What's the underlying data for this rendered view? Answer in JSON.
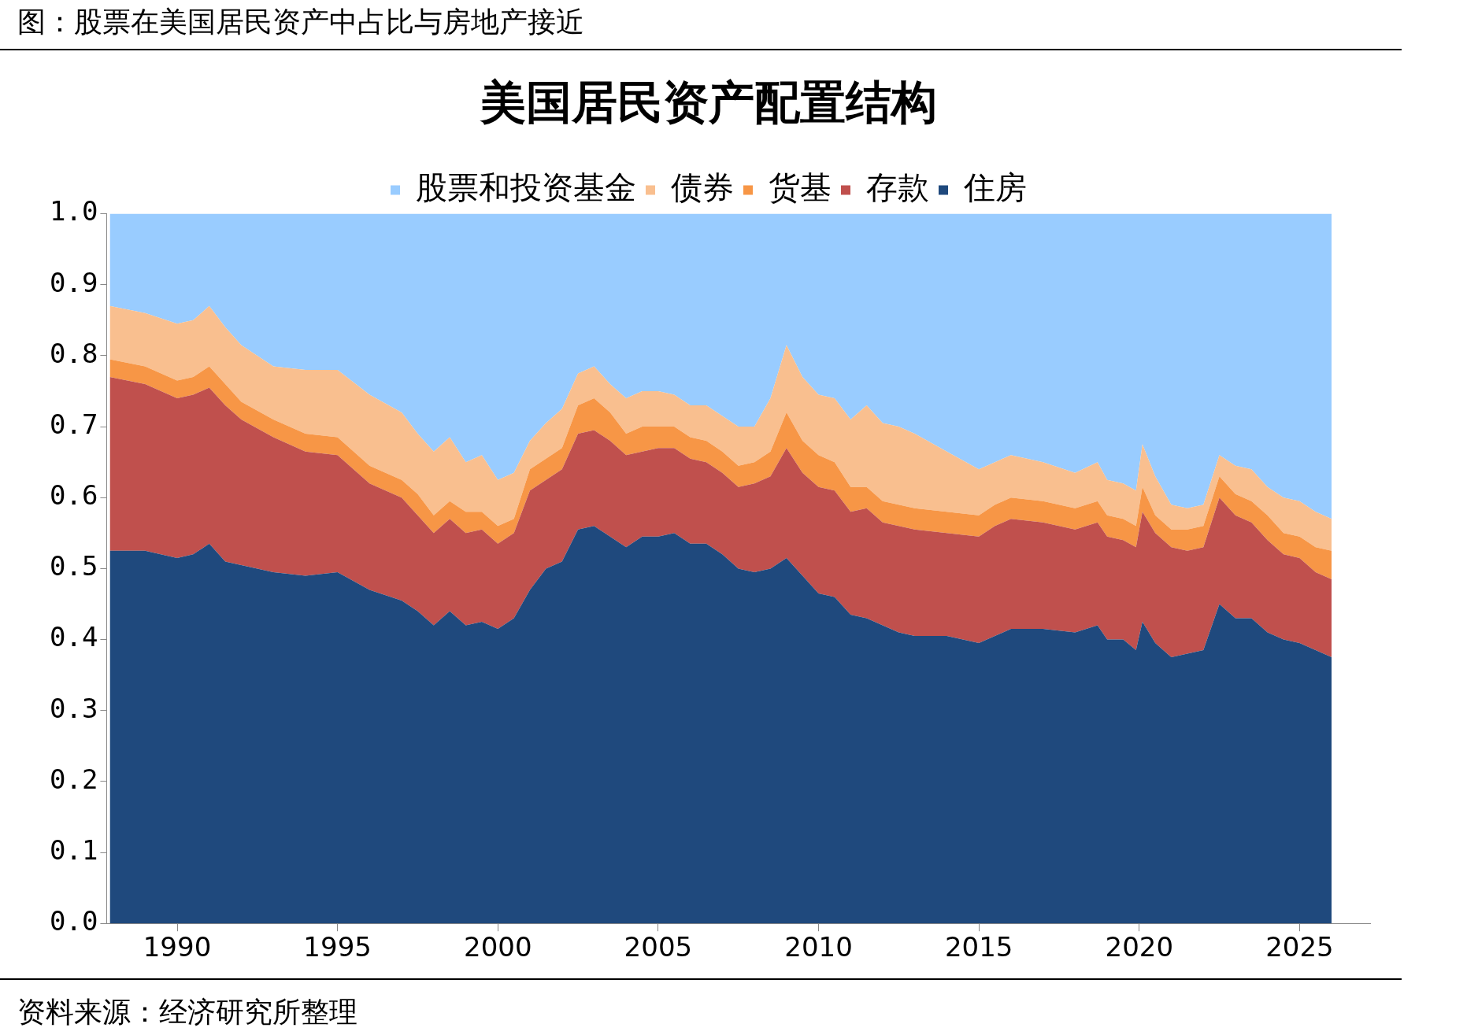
{
  "chart_data": {
    "type": "area",
    "title": "图：股票在美国居民资产中占比与房地产接近",
    "subtitle": "美国居民资产配置结构",
    "stacked": true,
    "legend": "top",
    "grid": false,
    "x": [
      1987.9,
      1989,
      1990,
      1990.5,
      1991,
      1991.5,
      1992,
      1993,
      1994,
      1995,
      1996,
      1997,
      1997.5,
      1998,
      1998.5,
      1999,
      1999.5,
      2000,
      2000.5,
      2001,
      2001.5,
      2002,
      2002.5,
      2003,
      2003.5,
      2004,
      2004.5,
      2005,
      2005.5,
      2006,
      2006.5,
      2007,
      2007.5,
      2008,
      2008.5,
      2009,
      2009.5,
      2010,
      2010.5,
      2011,
      2011.5,
      2012,
      2012.5,
      2013,
      2014,
      2015,
      2015.5,
      2016,
      2017,
      2018,
      2018.7,
      2019,
      2019.5,
      2019.9,
      2020.1,
      2020.5,
      2021,
      2021.5,
      2022,
      2022.5,
      2023,
      2023.5,
      2024,
      2024.5,
      2025,
      2025.5,
      2026
    ],
    "series": [
      {
        "name": "住房",
        "color": "#1f497d",
        "values": [
          0.525,
          0.525,
          0.515,
          0.52,
          0.535,
          0.51,
          0.505,
          0.495,
          0.49,
          0.495,
          0.47,
          0.455,
          0.44,
          0.42,
          0.44,
          0.42,
          0.425,
          0.415,
          0.43,
          0.47,
          0.5,
          0.51,
          0.555,
          0.56,
          0.545,
          0.53,
          0.545,
          0.545,
          0.55,
          0.535,
          0.535,
          0.52,
          0.5,
          0.495,
          0.5,
          0.515,
          0.49,
          0.465,
          0.46,
          0.435,
          0.43,
          0.42,
          0.41,
          0.405,
          0.405,
          0.395,
          0.405,
          0.415,
          0.415,
          0.41,
          0.42,
          0.4,
          0.4,
          0.385,
          0.425,
          0.395,
          0.375,
          0.38,
          0.385,
          0.45,
          0.43,
          0.43,
          0.41,
          0.4,
          0.395,
          0.385,
          0.375
        ]
      },
      {
        "name": "存款",
        "color": "#c0504d",
        "values": [
          0.245,
          0.235,
          0.225,
          0.225,
          0.22,
          0.22,
          0.205,
          0.19,
          0.175,
          0.165,
          0.15,
          0.145,
          0.135,
          0.13,
          0.13,
          0.13,
          0.13,
          0.12,
          0.12,
          0.14,
          0.125,
          0.13,
          0.135,
          0.135,
          0.135,
          0.13,
          0.12,
          0.125,
          0.12,
          0.12,
          0.115,
          0.115,
          0.115,
          0.125,
          0.13,
          0.155,
          0.145,
          0.15,
          0.15,
          0.145,
          0.155,
          0.145,
          0.15,
          0.15,
          0.145,
          0.15,
          0.155,
          0.155,
          0.15,
          0.145,
          0.145,
          0.145,
          0.14,
          0.145,
          0.155,
          0.155,
          0.155,
          0.145,
          0.145,
          0.15,
          0.145,
          0.135,
          0.13,
          0.12,
          0.12,
          0.11,
          0.11
        ]
      },
      {
        "name": "货基",
        "color": "#f79646",
        "values": [
          0.025,
          0.025,
          0.025,
          0.025,
          0.03,
          0.03,
          0.025,
          0.025,
          0.025,
          0.025,
          0.025,
          0.025,
          0.03,
          0.025,
          0.025,
          0.03,
          0.025,
          0.025,
          0.02,
          0.03,
          0.03,
          0.03,
          0.04,
          0.045,
          0.04,
          0.03,
          0.035,
          0.03,
          0.03,
          0.03,
          0.03,
          0.03,
          0.03,
          0.03,
          0.035,
          0.05,
          0.045,
          0.045,
          0.04,
          0.035,
          0.03,
          0.03,
          0.03,
          0.03,
          0.03,
          0.03,
          0.03,
          0.03,
          0.03,
          0.03,
          0.03,
          0.03,
          0.03,
          0.03,
          0.035,
          0.025,
          0.025,
          0.03,
          0.03,
          0.03,
          0.03,
          0.03,
          0.035,
          0.03,
          0.03,
          0.035,
          0.04
        ]
      },
      {
        "name": "债券",
        "color": "#f9bf8f",
        "values": [
          0.075,
          0.075,
          0.08,
          0.08,
          0.085,
          0.08,
          0.08,
          0.075,
          0.09,
          0.095,
          0.1,
          0.095,
          0.085,
          0.09,
          0.09,
          0.07,
          0.08,
          0.065,
          0.065,
          0.04,
          0.05,
          0.055,
          0.045,
          0.045,
          0.04,
          0.05,
          0.05,
          0.05,
          0.045,
          0.045,
          0.05,
          0.05,
          0.055,
          0.05,
          0.075,
          0.095,
          0.09,
          0.085,
          0.09,
          0.095,
          0.115,
          0.11,
          0.11,
          0.105,
          0.085,
          0.065,
          0.06,
          0.06,
          0.055,
          0.05,
          0.055,
          0.05,
          0.05,
          0.05,
          0.06,
          0.055,
          0.035,
          0.03,
          0.03,
          0.03,
          0.04,
          0.045,
          0.04,
          0.05,
          0.05,
          0.05,
          0.045
        ]
      },
      {
        "name": "股票和投资基金",
        "color": "#99ccff",
        "values": [
          0.13,
          0.14,
          0.155,
          0.15,
          0.13,
          0.16,
          0.185,
          0.215,
          0.22,
          0.22,
          0.255,
          0.28,
          0.31,
          0.335,
          0.315,
          0.35,
          0.34,
          0.375,
          0.365,
          0.32,
          0.295,
          0.275,
          0.225,
          0.215,
          0.24,
          0.26,
          0.25,
          0.25,
          0.255,
          0.27,
          0.27,
          0.285,
          0.3,
          0.3,
          0.26,
          0.185,
          0.23,
          0.255,
          0.26,
          0.29,
          0.27,
          0.295,
          0.3,
          0.31,
          0.335,
          0.36,
          0.35,
          0.34,
          0.35,
          0.365,
          0.35,
          0.375,
          0.38,
          0.39,
          0.325,
          0.37,
          0.41,
          0.415,
          0.41,
          0.34,
          0.355,
          0.36,
          0.385,
          0.4,
          0.405,
          0.42,
          0.43
        ]
      }
    ],
    "xlim": [
      1987.8,
      2027.2
    ],
    "xticks": [
      1990,
      1995,
      2000,
      2005,
      2010,
      2015,
      2020,
      2025
    ],
    "ylim": [
      0,
      1
    ],
    "yticks": [
      {
        "value": 0,
        "label": "0.0"
      },
      0.1,
      0.2,
      0.3,
      0.4,
      0.5,
      0.6,
      0.7,
      0.8,
      0.9,
      {
        "value": 1,
        "label": "1.0"
      }
    ],
    "annotations": [
      "资料来源：经济研究所整理"
    ]
  }
}
